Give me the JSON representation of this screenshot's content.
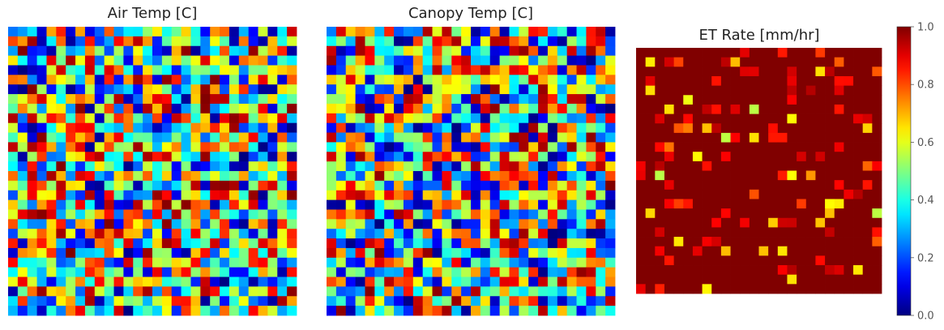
{
  "chart_data": [
    {
      "type": "heatmap",
      "title": "Air Temp [C]",
      "grid": [
        30,
        30
      ],
      "colormap": "jet",
      "value_range": [
        0,
        1
      ],
      "seed": 11,
      "distribution": "uniform",
      "axes": "off"
    },
    {
      "type": "heatmap",
      "title": "Canopy Temp [C]",
      "grid": [
        30,
        30
      ],
      "colormap": "jet",
      "value_range": [
        0,
        1
      ],
      "seed": 29,
      "distribution": "uniform",
      "axes": "off"
    },
    {
      "type": "heatmap",
      "title": "ET Rate [mm/hr]",
      "grid": [
        26,
        26
      ],
      "colormap": "jet",
      "value_range": [
        0,
        1
      ],
      "seed": 47,
      "distribution": "mostly saturated at 1.0 with sparse lower values",
      "axes": "off",
      "colorbar": {
        "ticks": [
          0.0,
          0.2,
          0.4,
          0.6,
          0.8,
          1.0
        ],
        "tick_labels": [
          "0.0",
          "0.2",
          "0.4",
          "0.6",
          "0.8",
          "1.0"
        ]
      }
    }
  ]
}
